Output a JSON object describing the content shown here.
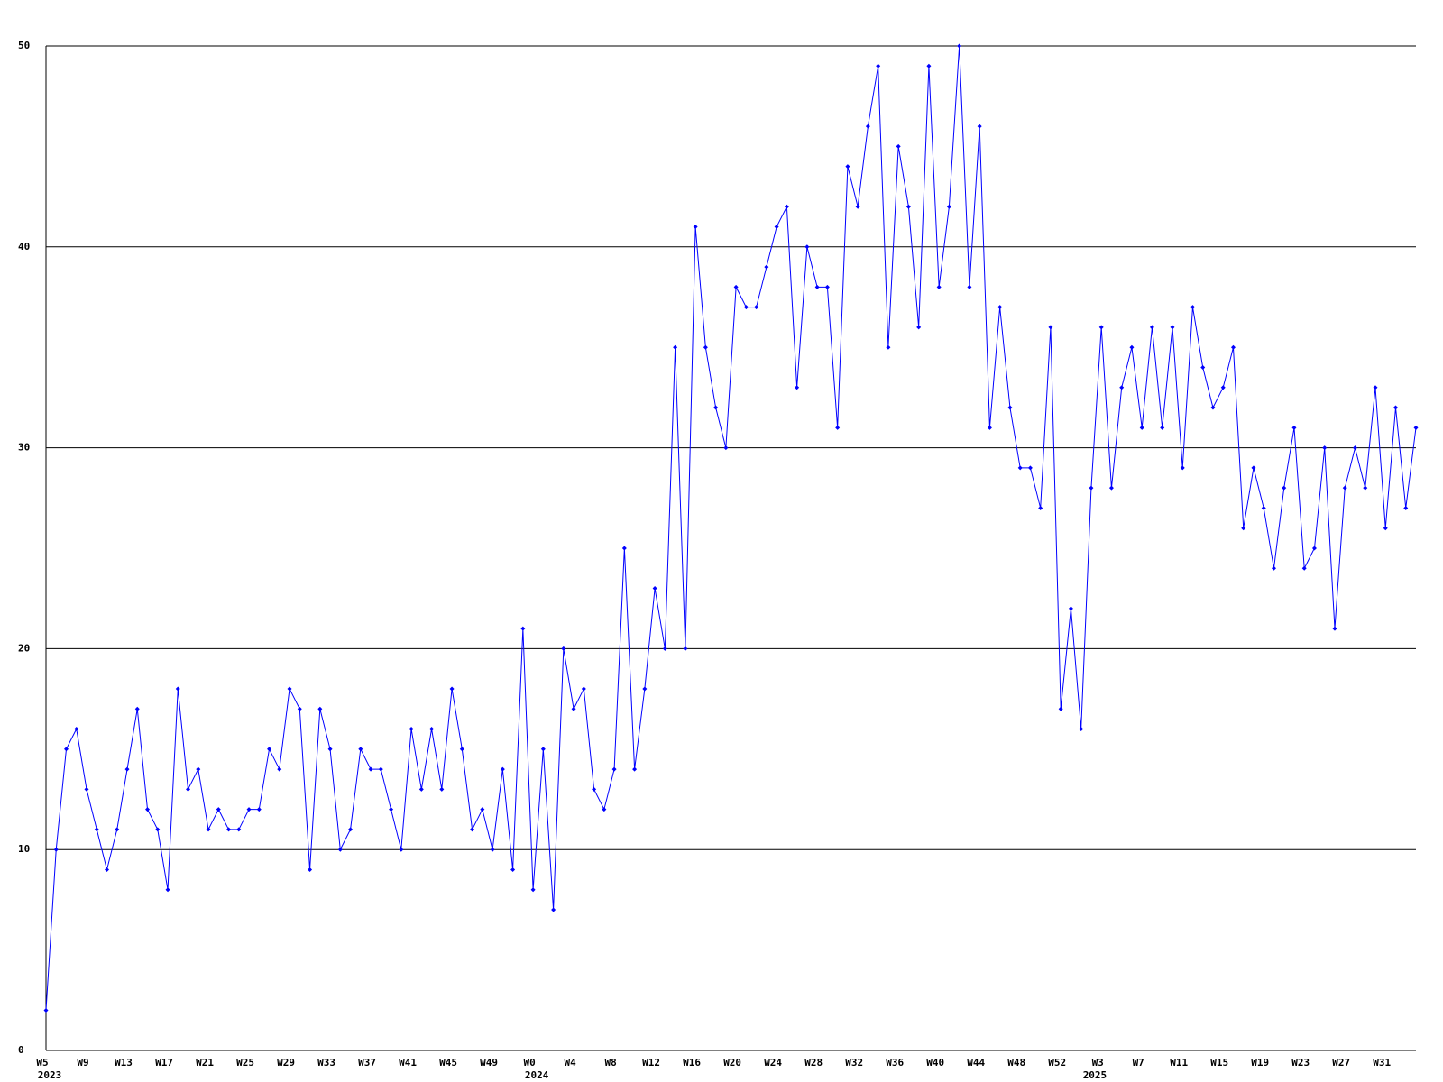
{
  "chart_data": {
    "type": "line",
    "categories": [
      "W5",
      null,
      null,
      null,
      "W9",
      null,
      null,
      null,
      "W13",
      null,
      null,
      null,
      "W17",
      null,
      null,
      null,
      "W21",
      null,
      null,
      null,
      "W25",
      null,
      null,
      null,
      "W29",
      null,
      null,
      null,
      "W33",
      null,
      null,
      null,
      "W37",
      null,
      null,
      null,
      "W41",
      null,
      null,
      null,
      "W45",
      null,
      null,
      null,
      "W49",
      null,
      null,
      null,
      "W0",
      null,
      null,
      null,
      "W4",
      null,
      null,
      null,
      "W8",
      null,
      null,
      null,
      "W12",
      null,
      null,
      null,
      "W16",
      null,
      null,
      null,
      "W20",
      null,
      null,
      null,
      "W24",
      null,
      null,
      null,
      "W28",
      null,
      null,
      null,
      "W32",
      null,
      null,
      null,
      "W36",
      null,
      null,
      null,
      "W40",
      null,
      null,
      null,
      "W44",
      null,
      null,
      null,
      "W48",
      null,
      null,
      null,
      "W52",
      null,
      null,
      null,
      "W3",
      null,
      null,
      null,
      "W7",
      null,
      null,
      null,
      "W11",
      null,
      null,
      null,
      "W15",
      null,
      null,
      null,
      "W19",
      null,
      null,
      null,
      "W23",
      null,
      null,
      null,
      "W27",
      null,
      null,
      null,
      "W31",
      null,
      null,
      null
    ],
    "years": [
      "2023",
      null,
      null,
      null,
      null,
      null,
      null,
      null,
      null,
      null,
      null,
      null,
      null,
      null,
      null,
      null,
      null,
      null,
      null,
      null,
      null,
      null,
      null,
      null,
      null,
      null,
      null,
      null,
      null,
      null,
      null,
      null,
      null,
      null,
      null,
      null,
      null,
      null,
      null,
      null,
      null,
      null,
      null,
      null,
      null,
      null,
      null,
      null,
      "2024",
      null,
      null,
      null,
      null,
      null,
      null,
      null,
      null,
      null,
      null,
      null,
      null,
      null,
      null,
      null,
      null,
      null,
      null,
      null,
      null,
      null,
      null,
      null,
      null,
      null,
      null,
      null,
      null,
      null,
      null,
      null,
      null,
      null,
      null,
      null,
      null,
      null,
      null,
      null,
      null,
      null,
      null,
      null,
      null,
      null,
      null,
      null,
      null,
      null,
      null,
      null,
      null,
      null,
      null,
      "2025",
      null,
      null,
      null,
      null,
      null,
      null,
      null,
      null,
      null,
      null,
      null,
      null,
      null,
      null,
      null,
      null,
      null,
      null,
      null,
      null,
      null,
      null,
      null,
      null,
      null,
      null,
      null,
      null,
      null,
      null,
      null,
      null,
      null,
      null
    ],
    "series": [
      {
        "color": "#0000ff",
        "values": [
          2,
          10,
          15,
          16,
          13,
          11,
          9,
          11,
          14,
          17,
          12,
          11,
          8,
          18,
          13,
          14,
          11,
          12,
          11,
          11,
          12,
          12,
          15,
          14,
          18,
          17,
          9,
          17,
          15,
          10,
          11,
          15,
          14,
          14,
          12,
          10,
          16,
          13,
          16,
          13,
          18,
          15,
          11,
          12,
          10,
          14,
          9,
          21,
          8,
          15,
          7,
          20,
          17,
          18,
          13,
          12,
          14,
          25,
          14,
          18,
          23,
          20,
          35,
          20,
          41,
          35,
          32,
          30,
          38,
          37,
          37,
          39,
          41,
          42,
          33,
          40,
          38,
          38,
          31,
          44,
          42,
          46,
          49,
          35,
          45,
          42,
          36,
          49,
          38,
          42,
          50,
          38,
          46,
          31,
          37,
          32,
          29,
          29,
          27,
          36,
          17,
          22,
          16,
          28,
          36,
          28,
          33,
          35,
          31,
          36,
          31,
          36,
          29,
          37,
          34,
          32,
          33,
          35,
          26,
          29,
          27,
          24,
          28,
          31,
          24,
          25,
          30,
          21,
          28,
          30,
          28,
          33,
          26,
          32,
          27,
          31
        ]
      }
    ],
    "ylim": [
      0,
      50
    ],
    "yticks": [
      0,
      10,
      20,
      30,
      40,
      50
    ],
    "grid": true
  }
}
